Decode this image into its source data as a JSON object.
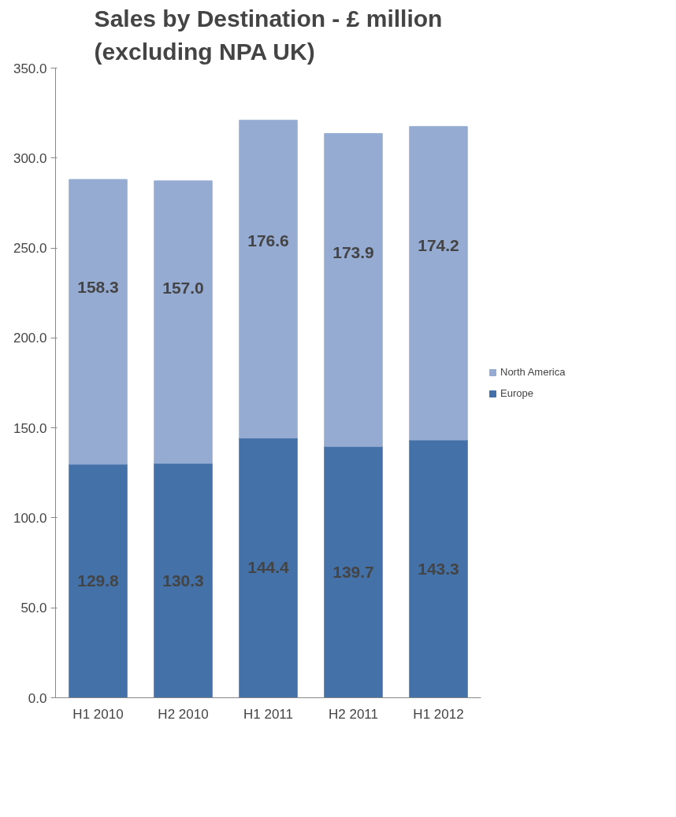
{
  "chart_data": {
    "type": "bar",
    "title": "Sales by Destination - £ million\n(excluding NPA UK)",
    "categories": [
      "H1 2010",
      "H2 2010",
      "H1 2011",
      "H2 2011",
      "H1 2012"
    ],
    "stacked": true,
    "data_labels": true,
    "legend": "right",
    "grid": false,
    "ylim": [
      0,
      350
    ],
    "yticks": [
      {
        "value": 0,
        "label": "0.0"
      },
      {
        "value": 50,
        "label": "50.0"
      },
      {
        "value": 100,
        "label": "100.0"
      },
      {
        "value": 150,
        "label": "150.0"
      },
      {
        "value": 200,
        "label": "200.0"
      },
      {
        "value": 250,
        "label": "250.0"
      },
      {
        "value": 300,
        "label": "300.0"
      },
      {
        "value": 350,
        "label": "350.0"
      }
    ],
    "series": [
      {
        "name": "Europe",
        "color": "#4472a8",
        "values": [
          129.8,
          130.3,
          144.4,
          139.7,
          143.3
        ],
        "value_labels": [
          "129.8",
          "130.3",
          "144.4",
          "139.7",
          "143.3"
        ]
      },
      {
        "name": "North America",
        "color": "#95abd2",
        "values": [
          158.3,
          157.0,
          176.6,
          173.9,
          174.2
        ],
        "value_labels": [
          "158.3",
          "157.0",
          "176.6",
          "173.9",
          "174.2"
        ]
      }
    ]
  }
}
